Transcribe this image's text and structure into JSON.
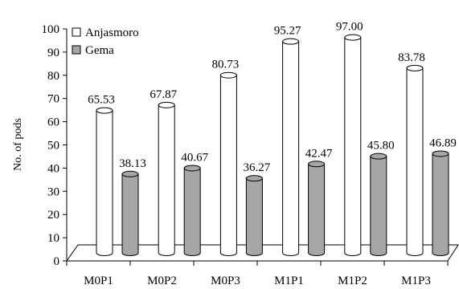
{
  "chart_data": {
    "type": "bar",
    "title": "",
    "xlabel": "",
    "ylabel": "No. of pods",
    "ylim": [
      0,
      100
    ],
    "yticks": [
      0,
      10,
      20,
      30,
      40,
      50,
      60,
      70,
      80,
      90,
      100
    ],
    "categories": [
      "M0P1",
      "M0P2",
      "M0P3",
      "M1P1",
      "M1P2",
      "M1P3"
    ],
    "series": [
      {
        "name": "Anjasmoro",
        "values": [
          65.53,
          67.87,
          80.73,
          95.27,
          97.0,
          83.78
        ],
        "labels": [
          "65.53",
          "67.87",
          "80.73",
          "95.27",
          "97.00",
          "83.78"
        ],
        "color": "#ffffff"
      },
      {
        "name": "Gema",
        "values": [
          38.13,
          40.67,
          36.27,
          42.47,
          45.8,
          46.89
        ],
        "labels": [
          "38.13",
          "40.67",
          "36.27",
          "42.47",
          "45.80",
          "46.89"
        ],
        "color": "#a6a6a6"
      }
    ],
    "style": "3d-cylinder",
    "legend": "top-left",
    "grid": false
  }
}
